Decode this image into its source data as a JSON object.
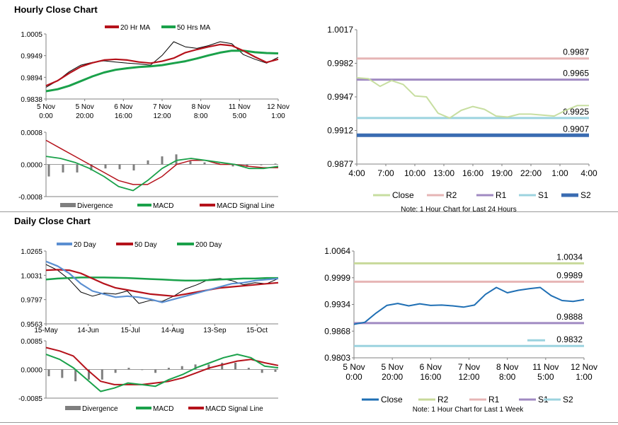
{
  "sections": {
    "hourly_title": "Hourly Close Chart",
    "daily_title": "Daily Close Chart"
  },
  "colors": {
    "ma_red": "#b5121b",
    "ma_green": "#1aa14a",
    "ma_blue": "#5b8fd1",
    "div_bar": "#7f7f7f",
    "close_green": "#c7dea0",
    "r2_pink": "#e6b5b5",
    "r1_purple": "#a08ac2",
    "s1_cyan": "#9cd3df",
    "s2_blue": "#3a6cb2",
    "close_blue": "#1f6fb4",
    "r2_khaki": "#c8d99a"
  },
  "chart_data": [
    {
      "id": "hourly_price",
      "type": "line",
      "title": "Hourly Close Chart",
      "legend": [
        "20 Hr MA",
        "50 Hrs MA"
      ],
      "ylim": [
        0.9838,
        1.0005
      ],
      "yticks": [
        "1.0005",
        "0.9949",
        "0.9894",
        "0.9838"
      ],
      "xticks": [
        [
          "5 Nov",
          "0:00"
        ],
        [
          "5 Nov",
          "20:00"
        ],
        [
          "6 Nov",
          "16:00"
        ],
        [
          "7 Nov",
          "12:00"
        ],
        [
          "8 Nov",
          "8:00"
        ],
        [
          "11 Nov",
          "5:00"
        ],
        [
          "12 Nov",
          "1:00"
        ]
      ],
      "series": [
        {
          "name": "20 Hr MA",
          "values": [
            0.9872,
            0.9885,
            0.9904,
            0.9921,
            0.9931,
            0.9938,
            0.994,
            0.9938,
            0.9933,
            0.993,
            0.9935,
            0.9943,
            0.9957,
            0.9965,
            0.9972,
            0.9978,
            0.9975,
            0.9962,
            0.9946,
            0.9932,
            0.994
          ]
        },
        {
          "name": "50 Hrs MA",
          "values": [
            0.9858,
            0.9863,
            0.9872,
            0.9884,
            0.9896,
            0.9906,
            0.9913,
            0.9917,
            0.992,
            0.9922,
            0.9925,
            0.993,
            0.9935,
            0.9942,
            0.995,
            0.9957,
            0.9962,
            0.9962,
            0.9958,
            0.9956,
            0.9955
          ]
        },
        {
          "name": "Close",
          "values": [
            0.9868,
            0.9885,
            0.9908,
            0.9925,
            0.9932,
            0.9936,
            0.9933,
            0.993,
            0.9928,
            0.9925,
            0.995,
            0.9985,
            0.9972,
            0.9968,
            0.9975,
            0.9985,
            0.998,
            0.9952,
            0.994,
            0.993,
            0.9945
          ]
        }
      ]
    },
    {
      "id": "hourly_macd",
      "type": "line",
      "legend": [
        "Divergence",
        "MACD",
        "MACD Signal Line"
      ],
      "ylim": [
        -0.0008,
        0.0008
      ],
      "yticks": [
        "0.0008",
        "0.0000",
        "-0.0008"
      ],
      "series": [
        {
          "name": "MACD",
          "values": [
            0.0002,
            0.00015,
            5e-05,
            -0.0001,
            -0.0003,
            -0.00055,
            -0.00065,
            -0.0004,
            -0.0001,
            0.0001,
            0.00015,
            0.0001,
            5e-05,
            0.0,
            -0.0001,
            -0.0001,
            -5e-05
          ]
        },
        {
          "name": "MACD Signal Line",
          "values": [
            0.0006,
            0.0004,
            0.0002,
            0.0,
            -0.0002,
            -0.0004,
            -0.0005,
            -0.0005,
            -0.0003,
            0.0,
            0.0001,
            0.0001,
            0.0,
            0.0,
            -5e-05,
            -8e-05,
            -8e-05
          ]
        },
        {
          "name": "Divergence",
          "values": [
            -0.0003,
            -0.0002,
            -0.0002,
            -0.00015,
            -0.0001,
            -0.00012,
            -0.00015,
            0.0001,
            0.0002,
            0.00025,
            8e-05,
            5e-05,
            3e-05,
            -5e-05,
            -6e-05,
            -2e-05,
            2e-05
          ]
        }
      ]
    },
    {
      "id": "hourly_levels",
      "type": "line",
      "ylim": [
        0.9877,
        1.0017
      ],
      "yticks": [
        "1.0017",
        "0.9982",
        "0.9947",
        "0.9912",
        "0.9877"
      ],
      "xticks": [
        "4:00",
        "7:00",
        "10:00",
        "13:00",
        "16:00",
        "19:00",
        "22:00",
        "1:00",
        "4:00"
      ],
      "levels": [
        {
          "name": "R2",
          "value": 0.9987,
          "label": "0.9987"
        },
        {
          "name": "R1",
          "value": 0.9965,
          "label": "0.9965"
        },
        {
          "name": "S1",
          "value": 0.9925,
          "label": "0.9925"
        },
        {
          "name": "S2",
          "value": 0.9907,
          "label": "0.9907"
        }
      ],
      "series": [
        {
          "name": "Close",
          "values": [
            0.9967,
            0.9966,
            0.9958,
            0.9964,
            0.996,
            0.9948,
            0.9947,
            0.993,
            0.9925,
            0.9933,
            0.9937,
            0.9934,
            0.9927,
            0.9926,
            0.9929,
            0.9929,
            0.9928,
            0.9927,
            0.9933,
            0.9938,
            0.9938
          ]
        }
      ],
      "legend": [
        "Close",
        "R2",
        "R1",
        "S1",
        "S2"
      ],
      "note": "Note: 1 Hour Chart for Last 24 Hours"
    },
    {
      "id": "daily_price",
      "type": "line",
      "title": "Daily Close Chart",
      "legend": [
        "20 Day",
        "50 Day",
        "200 Day"
      ],
      "ylim": [
        0.9563,
        1.0265
      ],
      "yticks": [
        "1.0265",
        "1.0031",
        "0.9797",
        "0.9563"
      ],
      "xticks": [
        "15-May",
        "14-Jun",
        "15-Jul",
        "14-Aug",
        "13-Sep",
        "15-Oct"
      ],
      "series": [
        {
          "name": "20 Day",
          "values": [
            1.0165,
            1.012,
            1.005,
            0.995,
            0.988,
            0.985,
            0.982,
            0.983,
            0.982,
            0.98,
            0.977,
            0.98,
            0.983,
            0.986,
            0.989,
            0.992,
            0.995,
            0.996,
            0.998,
            0.999,
            1.0
          ]
        },
        {
          "name": "50 Day",
          "values": [
            1.008,
            1.0085,
            1.008,
            1.005,
            1.0,
            0.995,
            0.991,
            0.989,
            0.987,
            0.985,
            0.984,
            0.983,
            0.985,
            0.987,
            0.989,
            0.991,
            0.992,
            0.993,
            0.994,
            0.995,
            0.996
          ]
        },
        {
          "name": "200 Day",
          "values": [
            0.999,
            1.0,
            1.0005,
            1.001,
            1.001,
            1.001,
            1.0008,
            1.0005,
            1.0,
            0.9995,
            0.999,
            0.9985,
            0.998,
            0.998,
            0.9985,
            0.999,
            0.9995,
            1.0,
            1.0,
            1.0005,
            1.0005
          ]
        },
        {
          "name": "Close",
          "values": [
            1.0135,
            1.008,
            0.999,
            0.987,
            0.983,
            0.986,
            0.985,
            0.988,
            0.976,
            0.979,
            0.978,
            0.983,
            0.99,
            0.994,
            0.999,
            1.0,
            0.998,
            0.994,
            0.996,
            0.995,
            1.0
          ]
        }
      ]
    },
    {
      "id": "daily_macd",
      "type": "line",
      "legend": [
        "Divergence",
        "MACD",
        "MACD Signal Line"
      ],
      "ylim": [
        -0.0085,
        0.0085
      ],
      "yticks": [
        "0.0085",
        "0.0000",
        "-0.0085"
      ],
      "series": [
        {
          "name": "MACD",
          "values": [
            0.0045,
            0.003,
            0.0005,
            -0.003,
            -0.0065,
            -0.0055,
            -0.004,
            -0.0045,
            -0.005,
            -0.003,
            -0.0015,
            0.0005,
            0.002,
            0.0035,
            0.0045,
            0.0035,
            0.001,
            0.0005
          ]
        },
        {
          "name": "MACD Signal Line",
          "values": [
            0.0065,
            0.0055,
            0.004,
            0.0,
            -0.0035,
            -0.0045,
            -0.0045,
            -0.0045,
            -0.004,
            -0.0035,
            -0.0025,
            -0.001,
            0.0005,
            0.0015,
            0.0025,
            0.003,
            0.002,
            0.0012
          ]
        },
        {
          "name": "Divergence",
          "values": [
            -0.002,
            -0.0025,
            -0.0035,
            -0.003,
            -0.003,
            -0.001,
            0.0005,
            0.0,
            -0.001,
            0.0005,
            0.001,
            0.0015,
            0.0015,
            0.002,
            0.002,
            0.0005,
            -0.001,
            -0.0007
          ]
        }
      ]
    },
    {
      "id": "daily_levels",
      "type": "line",
      "ylim": [
        0.9803,
        1.0064
      ],
      "yticks": [
        "1.0064",
        "0.9999",
        "0.9934",
        "0.9868",
        "0.9803"
      ],
      "xticks": [
        [
          "5 Nov",
          "0:00"
        ],
        [
          "5 Nov",
          "20:00"
        ],
        [
          "6 Nov",
          "16:00"
        ],
        [
          "7 Nov",
          "12:00"
        ],
        [
          "8 Nov",
          "8:00"
        ],
        [
          "11 Nov",
          "5:00"
        ],
        [
          "12 Nov",
          "1:00"
        ]
      ],
      "levels": [
        {
          "name": "R2",
          "value": 1.0034,
          "label": "1.0034"
        },
        {
          "name": "R1",
          "value": 0.9989,
          "label": "0.9989"
        },
        {
          "name": "S1",
          "value": 0.9888,
          "label": "0.9888"
        },
        {
          "name": "S2",
          "value": 0.9832,
          "label": "0.9832"
        }
      ],
      "series": [
        {
          "name": "Close",
          "values": [
            0.9885,
            0.989,
            0.9912,
            0.9931,
            0.9936,
            0.993,
            0.9935,
            0.9931,
            0.9932,
            0.993,
            0.9927,
            0.9932,
            0.9958,
            0.9975,
            0.9962,
            0.9968,
            0.9972,
            0.9975,
            0.9955,
            0.9943,
            0.9941,
            0.9945
          ]
        }
      ],
      "legend": [
        "Close",
        "R2",
        "R1",
        "S1",
        "S2"
      ],
      "note": "Note: 1 Hour Chart for Last 1 Week"
    }
  ]
}
